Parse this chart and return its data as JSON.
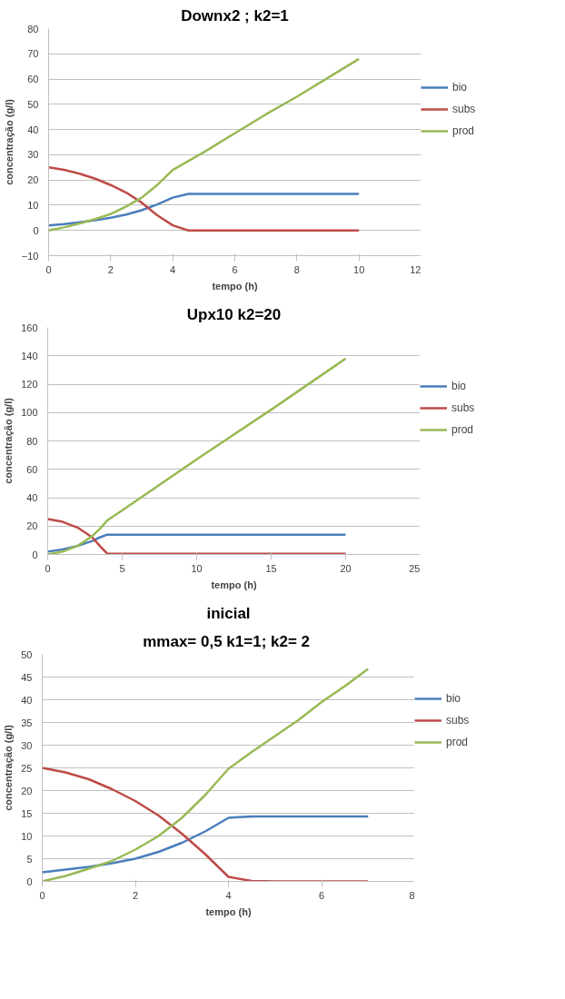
{
  "chart_data": [
    {
      "type": "line",
      "title": "Downx2 ; k2=1",
      "xlabel": "tempo (h)",
      "ylabel": "concentração (g/l)",
      "x": [
        0,
        0.5,
        1,
        1.5,
        2,
        2.5,
        3,
        3.5,
        4,
        4.5,
        5,
        6,
        7,
        8,
        9,
        10
      ],
      "series": [
        {
          "name": "bio",
          "color": "#4a7ebb",
          "values": [
            2,
            2.5,
            3.2,
            4,
            5,
            6.3,
            8,
            10.3,
            13,
            14.5,
            14.5,
            14.5,
            14.5,
            14.5,
            14.5,
            14.5
          ]
        },
        {
          "name": "subs",
          "color": "#be4b48",
          "values": [
            25,
            24,
            22.5,
            20.5,
            18,
            15,
            11,
            6,
            2,
            0,
            0,
            0,
            0,
            0,
            0,
            0
          ]
        },
        {
          "name": "prod",
          "color": "#98b954",
          "values": [
            0,
            1.2,
            2.8,
            4.5,
            6.5,
            9.5,
            13,
            18,
            24,
            27.5,
            31,
            38.5,
            46,
            53,
            60.5,
            68
          ]
        }
      ],
      "xlim": [
        0,
        12
      ],
      "xticks": [
        0,
        2,
        4,
        6,
        8,
        10,
        12
      ],
      "ylim": [
        -10,
        80
      ],
      "yticks": [
        -10,
        0,
        10,
        20,
        30,
        40,
        50,
        60,
        70,
        80
      ],
      "grid": "y",
      "legend": "right"
    },
    {
      "type": "line",
      "title": "Upx10 k2=20",
      "xlabel": "tempo (h)",
      "ylabel": "concentração (g/l)",
      "x": [
        0,
        1,
        2,
        3,
        3.5,
        4,
        5,
        10,
        15,
        20
      ],
      "series": [
        {
          "name": "bio",
          "color": "#4a7ebb",
          "values": [
            2,
            3.5,
            6,
            9.5,
            12,
            14,
            14,
            14,
            14,
            14
          ]
        },
        {
          "name": "subs",
          "color": "#be4b48",
          "values": [
            25,
            23,
            19,
            12,
            6,
            0.5,
            0.5,
            0.5,
            0.5,
            0.5
          ]
        },
        {
          "name": "prod",
          "color": "#98b954",
          "values": [
            0,
            2,
            6,
            13,
            18,
            24,
            31,
            67,
            102,
            138
          ]
        }
      ],
      "xlim": [
        0,
        25
      ],
      "xticks": [
        0,
        5,
        10,
        15,
        20,
        25
      ],
      "ylim": [
        0,
        160
      ],
      "yticks": [
        0,
        20,
        40,
        60,
        80,
        100,
        120,
        140,
        160
      ],
      "grid": "y",
      "legend": "right"
    },
    {
      "type": "line",
      "title": "inicial",
      "subtitle": "mmax= 0,5  k1=1; k2= 2",
      "xlabel": "tempo (h)",
      "ylabel": "concentração (g/l)",
      "x": [
        0,
        0.5,
        1,
        1.5,
        2,
        2.5,
        3,
        3.5,
        4,
        4.5,
        5,
        5.5,
        6,
        6.5,
        7
      ],
      "series": [
        {
          "name": "bio",
          "color": "#4a7ebb",
          "values": [
            2,
            2.6,
            3.2,
            4,
            5,
            6.5,
            8.5,
            11,
            14,
            14.3,
            14.3,
            14.3,
            14.3,
            14.3,
            14.3
          ]
        },
        {
          "name": "subs",
          "color": "#be4b48",
          "values": [
            25,
            24,
            22.5,
            20.3,
            17.7,
            14.5,
            10.5,
            6,
            1,
            0.1,
            0,
            0,
            0,
            0,
            0
          ]
        },
        {
          "name": "prod",
          "color": "#98b954",
          "values": [
            0,
            1.2,
            2.8,
            4.5,
            7,
            10,
            14,
            19,
            24.8,
            28.5,
            32,
            35.5,
            39.5,
            43,
            46.8
          ]
        }
      ],
      "xlim": [
        0,
        8
      ],
      "xticks": [
        0,
        2,
        4,
        6,
        8
      ],
      "ylim": [
        0,
        50
      ],
      "yticks": [
        0,
        5,
        10,
        15,
        20,
        25,
        30,
        35,
        40,
        45,
        50
      ],
      "grid": "y",
      "legend": "right"
    }
  ]
}
